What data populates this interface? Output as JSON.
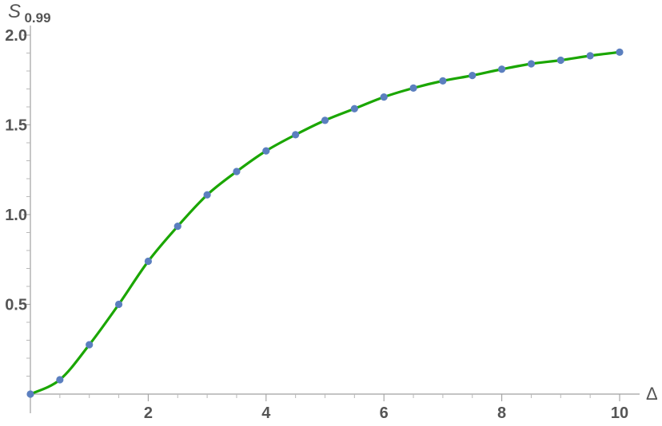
{
  "chart_data": {
    "type": "line",
    "xlabel": "Δ",
    "ylabel": {
      "base": "S",
      "subscript": "0.99"
    },
    "xlim": [
      0,
      10
    ],
    "ylim": [
      0,
      2.0
    ],
    "x_ticks": [
      {
        "value": 2,
        "label": "2"
      },
      {
        "value": 4,
        "label": "4"
      },
      {
        "value": 6,
        "label": "6"
      },
      {
        "value": 8,
        "label": "8"
      },
      {
        "value": 10,
        "label": "10"
      }
    ],
    "y_ticks": [
      {
        "value": 0.5,
        "label": "0.5"
      },
      {
        "value": 1.0,
        "label": "1.0"
      },
      {
        "value": 1.5,
        "label": "1.5"
      },
      {
        "value": 2.0,
        "label": "2.0"
      }
    ],
    "grid": false,
    "curve_color": "#1aa600",
    "marker_color": "#5b7fbf",
    "series": [
      {
        "x": [
          0,
          0.5,
          1.0,
          1.5,
          2.0,
          2.5,
          3.0,
          3.5,
          4.0,
          4.5,
          5.0,
          5.5,
          6.0,
          6.5,
          7.0,
          7.5,
          8.0,
          8.5,
          9.0,
          9.5,
          10.0
        ],
        "values": [
          0.0,
          0.08,
          0.275,
          0.5,
          0.74,
          0.935,
          1.11,
          1.24,
          1.355,
          1.445,
          1.525,
          1.59,
          1.655,
          1.705,
          1.745,
          1.775,
          1.81,
          1.84,
          1.86,
          1.885,
          1.905
        ]
      }
    ]
  }
}
